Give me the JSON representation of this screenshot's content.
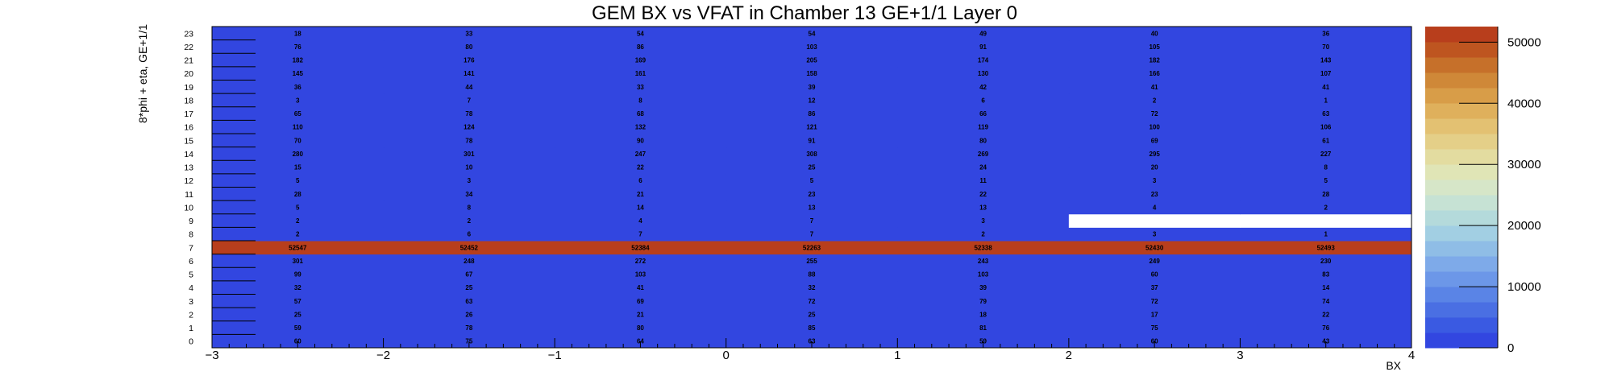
{
  "chart_data": {
    "type": "heatmap",
    "title": "GEM BX vs VFAT in Chamber 13 GE+1/1 Layer 0",
    "xlabel": "BX",
    "ylabel": "8*phi + eta, GE+1/1",
    "xlim": [
      -3,
      4
    ],
    "ylim": [
      0,
      24
    ],
    "x_ticks": [
      "−3",
      "−2",
      "−1",
      "0",
      "1",
      "2",
      "3",
      "4"
    ],
    "x_bin_centers": [
      -2.5,
      -1.5,
      -0.5,
      0.5,
      1.5,
      2.5,
      3.5
    ],
    "y_bins": [
      "0",
      "1",
      "2",
      "3",
      "4",
      "5",
      "6",
      "7",
      "8",
      "9",
      "10",
      "11",
      "12",
      "13",
      "14",
      "15",
      "16",
      "17",
      "18",
      "19",
      "20",
      "21",
      "22",
      "23"
    ],
    "zlim": [
      0,
      52547
    ],
    "z_ticks": [
      "0",
      "10000",
      "20000",
      "30000",
      "40000",
      "50000"
    ],
    "z_tick_values": [
      0,
      10000,
      20000,
      30000,
      40000,
      50000
    ],
    "values": [
      [
        60,
        75,
        64,
        63,
        59,
        60,
        43
      ],
      [
        59,
        78,
        80,
        85,
        81,
        75,
        76
      ],
      [
        25,
        26,
        21,
        25,
        18,
        17,
        22
      ],
      [
        57,
        63,
        69,
        72,
        79,
        72,
        74
      ],
      [
        32,
        25,
        41,
        32,
        39,
        37,
        14
      ],
      [
        99,
        67,
        103,
        88,
        103,
        60,
        83
      ],
      [
        301,
        248,
        272,
        255,
        243,
        249,
        230
      ],
      [
        52547,
        52452,
        52384,
        52263,
        52338,
        52430,
        52493
      ],
      [
        2,
        6,
        7,
        7,
        2,
        3,
        1
      ],
      [
        2,
        2,
        4,
        7,
        3,
        null,
        null
      ],
      [
        5,
        8,
        14,
        13,
        13,
        4,
        2
      ],
      [
        28,
        34,
        21,
        23,
        22,
        23,
        28
      ],
      [
        5,
        3,
        6,
        5,
        11,
        3,
        5
      ],
      [
        15,
        10,
        22,
        25,
        24,
        20,
        8
      ],
      [
        280,
        301,
        247,
        308,
        269,
        295,
        227
      ],
      [
        70,
        78,
        90,
        91,
        80,
        69,
        61
      ],
      [
        110,
        124,
        132,
        121,
        119,
        100,
        106
      ],
      [
        65,
        78,
        68,
        86,
        66,
        72,
        63
      ],
      [
        3,
        7,
        8,
        12,
        6,
        2,
        1
      ],
      [
        36,
        44,
        33,
        39,
        42,
        41,
        41
      ],
      [
        145,
        141,
        161,
        158,
        130,
        166,
        107
      ],
      [
        182,
        176,
        169,
        205,
        174,
        182,
        143
      ],
      [
        76,
        80,
        86,
        103,
        91,
        105,
        70
      ],
      [
        18,
        33,
        54,
        54,
        49,
        40,
        36
      ]
    ],
    "palette": [
      "#3246e0",
      "#3a5ae2",
      "#4a6fe3",
      "#5a84e6",
      "#6c97e8",
      "#7eaae9",
      "#8fbde6",
      "#a2cfe3",
      "#b4dadb",
      "#c6e2d4",
      "#d6e6c8",
      "#e0e5b6",
      "#e3dca0",
      "#e4cf88",
      "#e3c172",
      "#dfb05c",
      "#d89d48",
      "#cf8838",
      "#c6702a",
      "#be5520",
      "#b83e1c"
    ],
    "colors": {
      "background": "#ffffff",
      "empty_bin": "#ffffff",
      "axis": "#000000"
    }
  }
}
